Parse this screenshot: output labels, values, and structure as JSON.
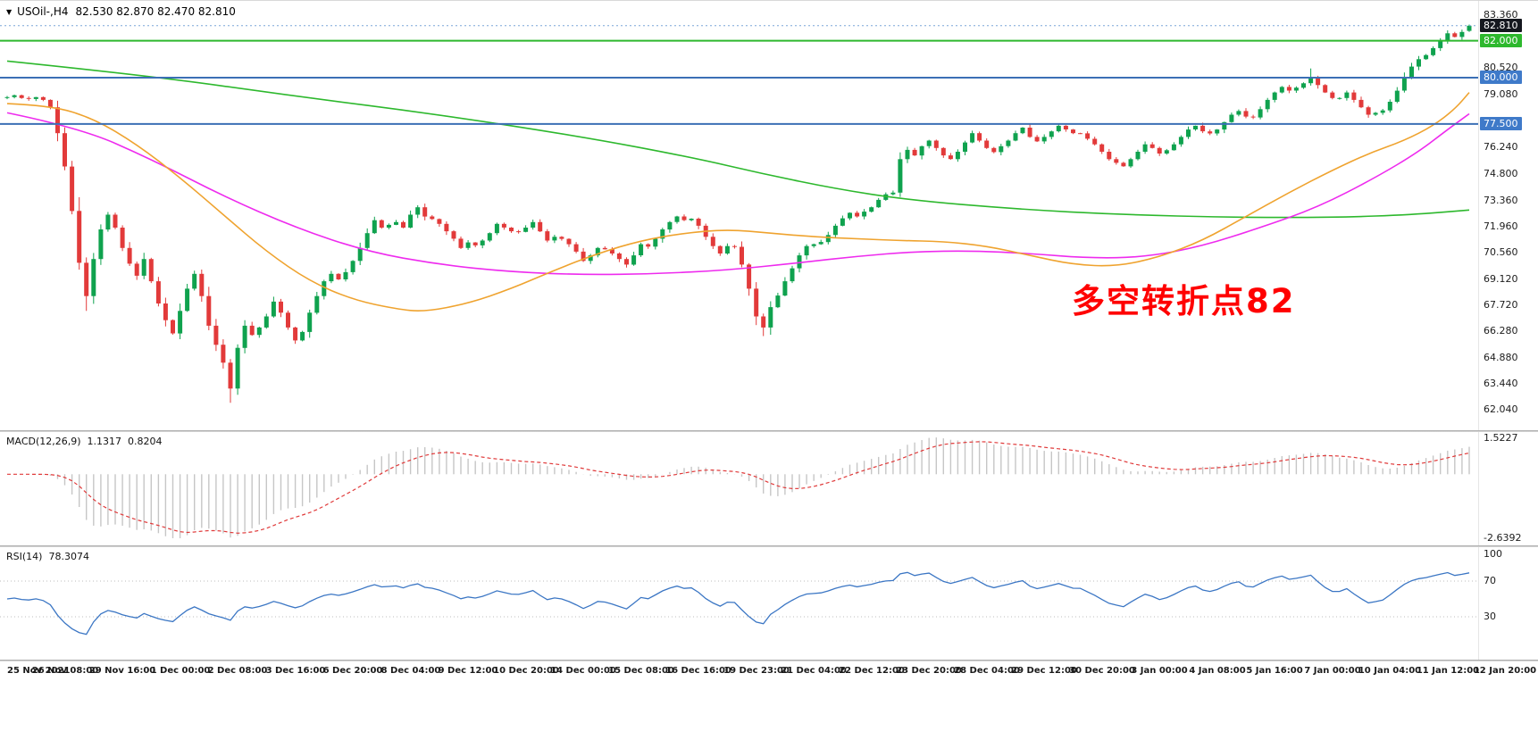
{
  "header": {
    "marker_icon": "▼",
    "symbol_tf": "USOil-,H4",
    "ohlc": "82.530 82.870 82.470 82.810"
  },
  "chart_data": {
    "type": "candlestick",
    "symbol": "USOil-",
    "timeframe": "H4",
    "indicators": [
      "MACD(12,26,9)",
      "RSI(14)"
    ],
    "first_open": 78.9,
    "h4_closes": [
      78.95,
      79.05,
      78.9,
      78.85,
      78.95,
      78.8,
      78.4,
      77.0,
      75.2,
      72.8,
      70.0,
      68.2,
      70.2,
      71.8,
      72.6,
      71.9,
      70.8,
      69.95,
      69.3,
      70.2,
      69.0,
      67.8,
      66.9,
      66.18,
      67.4,
      68.6,
      69.4,
      68.2,
      66.6,
      65.57,
      64.6,
      63.2,
      65.4,
      66.6,
      66.1,
      66.5,
      67.1,
      67.9,
      67.3,
      66.5,
      65.8,
      66.26,
      67.3,
      68.2,
      69.0,
      69.4,
      69.1,
      69.49,
      70.1,
      70.8,
      71.6,
      72.3,
      71.9,
      72.05,
      72.2,
      71.9,
      72.6,
      73.0,
      72.5,
      72.36,
      72.1,
      71.7,
      71.3,
      70.8,
      71.1,
      70.94,
      71.2,
      71.6,
      72.1,
      71.9,
      71.7,
      71.67,
      71.9,
      72.2,
      71.7,
      71.2,
      71.4,
      71.29,
      71.0,
      70.6,
      70.1,
      70.4,
      70.8,
      70.73,
      70.5,
      70.2,
      69.9,
      70.4,
      71.0,
      70.87,
      71.3,
      71.8,
      72.2,
      72.5,
      72.3,
      72.38,
      72.0,
      71.4,
      70.9,
      70.5,
      70.9,
      70.86,
      69.9,
      68.6,
      67.1,
      66.5,
      67.6,
      68.23,
      69.0,
      69.7,
      70.4,
      70.9,
      71.0,
      71.12,
      71.5,
      72.0,
      72.4,
      72.7,
      72.5,
      72.76,
      73.0,
      73.4,
      73.7,
      73.79,
      75.6,
      76.1,
      75.8,
      76.3,
      76.6,
      76.2,
      75.8,
      75.6,
      76.0,
      76.5,
      77.0,
      76.6,
      76.2,
      75.98,
      76.3,
      76.6,
      77.0,
      77.3,
      76.8,
      76.56,
      76.8,
      77.1,
      77.4,
      77.2,
      77.0,
      76.99,
      76.7,
      76.4,
      76.0,
      75.6,
      75.4,
      75.21,
      75.6,
      76.0,
      76.4,
      76.2,
      75.9,
      76.08,
      76.4,
      76.8,
      77.2,
      77.4,
      77.1,
      76.99,
      77.2,
      77.6,
      78.0,
      78.2,
      77.9,
      77.85,
      78.3,
      78.8,
      79.2,
      79.5,
      79.3,
      79.46,
      79.7,
      80.0,
      79.6,
      79.2,
      78.9,
      78.9,
      79.2,
      78.8,
      78.4,
      78.0,
      78.1,
      78.23,
      78.7,
      79.3,
      80.0,
      80.6,
      81.0,
      81.22,
      81.6,
      82.0,
      82.4,
      82.2,
      82.47,
      82.81
    ],
    "wick_overrides": {
      "11": {
        "low": 67.4
      },
      "31": {
        "low": 62.43
      },
      "105": {
        "low": 66.04
      },
      "181": {
        "high": 80.5
      }
    },
    "last_candle": {
      "open": 82.53,
      "high": 82.87,
      "low": 82.47,
      "close": 82.81
    },
    "price_axis": {
      "top_price": 84.15,
      "bottom_price": 60.95,
      "ticks": [
        83.36,
        80.52,
        79.08,
        76.24,
        74.8,
        73.36,
        71.96,
        70.56,
        69.12,
        67.72,
        66.28,
        64.88,
        63.44,
        62.04
      ]
    },
    "hlines": [
      {
        "name": "current-price-line",
        "price": 82.81,
        "style": "dotted",
        "line_color": "#7aa6d8",
        "badge_bg": "#15181f"
      },
      {
        "name": "level-line-82",
        "price": 82.0,
        "style": "solid",
        "line_color": "#2db82d",
        "badge_bg": "#2db82d"
      },
      {
        "name": "level-line-80",
        "price": 80.0,
        "style": "solid",
        "line_color": "#3b6fb5",
        "badge_bg": "#3f7ac9"
      },
      {
        "name": "level-line-77-50",
        "price": 77.5,
        "style": "solid",
        "line_color": "#3b6fb5",
        "badge_bg": "#3f7ac9"
      }
    ],
    "moving_averages": [
      {
        "name": "ma-slow-green",
        "color": "#2db82d",
        "anchors": [
          [
            0,
            80.9
          ],
          [
            20,
            80.1
          ],
          [
            40,
            79.0
          ],
          [
            60,
            78.0
          ],
          [
            80,
            76.8
          ],
          [
            95,
            75.7
          ],
          [
            105,
            74.8
          ],
          [
            115,
            74.0
          ],
          [
            125,
            73.4
          ],
          [
            140,
            72.9
          ],
          [
            155,
            72.6
          ],
          [
            170,
            72.45
          ],
          [
            185,
            72.45
          ],
          [
            195,
            72.6
          ],
          [
            203,
            72.85
          ]
        ]
      },
      {
        "name": "ma-mid-magenta",
        "color": "#ee2bee",
        "anchors": [
          [
            0,
            78.1
          ],
          [
            10,
            77.3
          ],
          [
            20,
            75.6
          ],
          [
            30,
            73.6
          ],
          [
            40,
            71.9
          ],
          [
            50,
            70.6
          ],
          [
            60,
            69.9
          ],
          [
            70,
            69.5
          ],
          [
            80,
            69.35
          ],
          [
            90,
            69.4
          ],
          [
            100,
            69.6
          ],
          [
            110,
            70.0
          ],
          [
            118,
            70.35
          ],
          [
            126,
            70.6
          ],
          [
            134,
            70.65
          ],
          [
            142,
            70.5
          ],
          [
            150,
            70.25
          ],
          [
            158,
            70.3
          ],
          [
            166,
            70.9
          ],
          [
            174,
            71.9
          ],
          [
            182,
            73.0
          ],
          [
            190,
            74.6
          ],
          [
            196,
            76.0
          ],
          [
            200,
            77.2
          ],
          [
            203,
            78.05
          ]
        ]
      },
      {
        "name": "ma-fast-orange",
        "color": "#efa32f",
        "anchors": [
          [
            0,
            78.6
          ],
          [
            6,
            78.5
          ],
          [
            12,
            77.8
          ],
          [
            18,
            76.4
          ],
          [
            24,
            74.6
          ],
          [
            30,
            72.6
          ],
          [
            36,
            70.6
          ],
          [
            42,
            69.0
          ],
          [
            48,
            68.0
          ],
          [
            54,
            67.5
          ],
          [
            58,
            67.35
          ],
          [
            64,
            67.8
          ],
          [
            70,
            68.6
          ],
          [
            76,
            69.6
          ],
          [
            82,
            70.5
          ],
          [
            88,
            71.2
          ],
          [
            94,
            71.6
          ],
          [
            100,
            71.8
          ],
          [
            106,
            71.6
          ],
          [
            112,
            71.4
          ],
          [
            118,
            71.3
          ],
          [
            124,
            71.2
          ],
          [
            130,
            71.15
          ],
          [
            136,
            70.9
          ],
          [
            142,
            70.4
          ],
          [
            148,
            69.9
          ],
          [
            154,
            69.8
          ],
          [
            160,
            70.3
          ],
          [
            166,
            71.2
          ],
          [
            172,
            72.5
          ],
          [
            178,
            73.8
          ],
          [
            184,
            75.0
          ],
          [
            189,
            75.9
          ],
          [
            194,
            76.6
          ],
          [
            198,
            77.4
          ],
          [
            201,
            78.3
          ],
          [
            203,
            79.2
          ]
        ]
      }
    ],
    "macd": {
      "label": "MACD(12,26,9)",
      "value_main": "1.1317",
      "value_signal": "0.8204",
      "fast": 12,
      "slow": 26,
      "signal": 9,
      "axis_max": 1.5227,
      "axis_min": -2.6392
    },
    "rsi": {
      "label": "RSI(14)",
      "value": "78.3074",
      "period": 14,
      "levels": [
        70,
        30
      ],
      "axis_labels": [
        100,
        70,
        30
      ]
    },
    "x_labels": [
      "25 Nov 2021",
      "26 Nov 08:00",
      "29 Nov 16:00",
      "1 Dec 00:00",
      "2 Dec 08:00",
      "3 Dec 16:00",
      "6 Dec 20:00",
      "8 Dec 04:00",
      "9 Dec 12:00",
      "10 Dec 20:00",
      "14 Dec 00:00",
      "15 Dec 08:00",
      "16 Dec 16:00",
      "19 Dec 23:00",
      "21 Dec 04:00",
      "22 Dec 12:00",
      "23 Dec 20:00",
      "28 Dec 04:00",
      "29 Dec 12:00",
      "30 Dec 20:00",
      "3 Jan 00:00",
      "4 Jan 08:00",
      "5 Jan 16:00",
      "7 Jan 00:00",
      "10 Jan 04:00",
      "11 Jan 12:00",
      "12 Jan 20:00"
    ],
    "candles_per_label": 8,
    "annotation": {
      "text": "多空转折点82",
      "color": "#ff0000"
    },
    "style": {
      "up": "#0fa24e",
      "down": "#e23a3a",
      "hist": "#c6c6c6",
      "macd_signal": "#e03a3a",
      "rsi_line": "#3b76c4",
      "rsi_level": "#bdbdbd",
      "axis_text": "#1c1c1c",
      "panel_bg": "#ffffff"
    }
  }
}
